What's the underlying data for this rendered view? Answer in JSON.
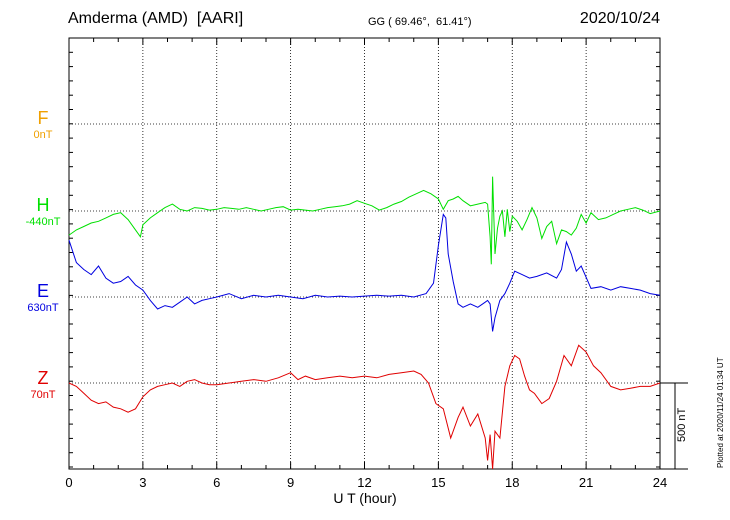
{
  "header": {
    "station": "Amderma (AMD)  [AARI]",
    "coords": "GG ( 69.46°,  61.41°)",
    "date": "2020/10/24"
  },
  "footer": {
    "plotted": "Plotted at 2020/11/24 01:34 UT"
  },
  "chart_data": {
    "type": "line",
    "xlabel": "U T (hour)",
    "xlim": [
      0,
      24
    ],
    "xticks": [
      0,
      3,
      6,
      9,
      12,
      15,
      18,
      21,
      24
    ],
    "grid": true,
    "scale_bar": {
      "label": "500 nT",
      "value": 500
    },
    "series": [
      {
        "name": "F",
        "baseline": "0nT",
        "color": "#f0a000",
        "x": [],
        "y": []
      },
      {
        "name": "H",
        "baseline": "-440nT",
        "color": "#00e000",
        "x": [
          0,
          0.3,
          0.6,
          0.9,
          1.2,
          1.5,
          1.8,
          2.1,
          2.4,
          2.7,
          2.9,
          3.0,
          3.3,
          3.6,
          3.9,
          4.2,
          4.5,
          4.8,
          5.1,
          5.4,
          5.7,
          6.0,
          6.3,
          6.6,
          6.9,
          7.2,
          7.5,
          7.8,
          8.1,
          8.4,
          8.7,
          9.0,
          9.3,
          9.6,
          9.9,
          10.2,
          10.5,
          10.8,
          11.1,
          11.4,
          11.7,
          12.0,
          12.3,
          12.6,
          12.9,
          13.2,
          13.5,
          13.8,
          14.1,
          14.4,
          14.7,
          15.0,
          15.2,
          15.4,
          15.6,
          15.8,
          16.0,
          16.3,
          16.6,
          16.9,
          17.0,
          17.1,
          17.15,
          17.2,
          17.3,
          17.4,
          17.5,
          17.6,
          17.7,
          17.8,
          17.9,
          18.0,
          18.2,
          18.4,
          18.6,
          18.8,
          19.0,
          19.2,
          19.4,
          19.6,
          19.8,
          20.0,
          20.2,
          20.4,
          20.6,
          20.8,
          21.0,
          21.2,
          21.5,
          21.8,
          22.1,
          22.4,
          22.7,
          23.0,
          23.3,
          23.6,
          24.0
        ],
        "y": [
          -140,
          -110,
          -90,
          -70,
          -60,
          -40,
          -20,
          -10,
          -50,
          -110,
          -150,
          -80,
          -40,
          -10,
          20,
          40,
          10,
          0,
          20,
          15,
          5,
          10,
          20,
          15,
          10,
          20,
          10,
          0,
          10,
          20,
          25,
          5,
          10,
          5,
          0,
          10,
          20,
          25,
          30,
          40,
          60,
          45,
          30,
          5,
          20,
          40,
          55,
          80,
          100,
          120,
          100,
          70,
          10,
          60,
          70,
          85,
          60,
          30,
          40,
          50,
          40,
          -150,
          -310,
          200,
          -250,
          -100,
          -30,
          0,
          -150,
          10,
          -120,
          -30,
          -60,
          -110,
          -50,
          20,
          -40,
          -160,
          -90,
          -60,
          -190,
          -110,
          -120,
          -140,
          -100,
          -20,
          -70,
          -10,
          -50,
          -40,
          -20,
          0,
          10,
          20,
          5,
          -15,
          0
        ]
      },
      {
        "name": "E",
        "baseline": "630nT",
        "color": "#0000e0",
        "x": [
          0,
          0.3,
          0.6,
          0.9,
          1.2,
          1.5,
          1.8,
          2.1,
          2.4,
          2.7,
          3.0,
          3.3,
          3.6,
          3.9,
          4.2,
          4.5,
          4.8,
          5.1,
          5.4,
          5.7,
          6.0,
          6.5,
          7.0,
          7.5,
          8.0,
          8.5,
          9.0,
          9.5,
          10.0,
          10.5,
          11.0,
          11.5,
          12.0,
          12.5,
          13.0,
          13.5,
          14.0,
          14.5,
          14.8,
          15.0,
          15.2,
          15.3,
          15.4,
          15.6,
          15.8,
          16.0,
          16.3,
          16.6,
          16.9,
          17.0,
          17.1,
          17.2,
          17.3,
          17.5,
          17.7,
          17.9,
          18.1,
          18.4,
          18.7,
          19.0,
          19.4,
          19.8,
          20.0,
          20.2,
          20.4,
          20.6,
          20.8,
          21.2,
          21.6,
          22.0,
          22.4,
          22.8,
          23.2,
          23.6,
          24.0
        ],
        "y": [
          330,
          200,
          160,
          130,
          180,
          110,
          80,
          90,
          120,
          70,
          40,
          -20,
          -70,
          -50,
          -60,
          -30,
          0,
          -40,
          -20,
          -10,
          0,
          20,
          -10,
          10,
          0,
          10,
          0,
          -10,
          10,
          0,
          5,
          0,
          5,
          10,
          5,
          10,
          0,
          20,
          80,
          300,
          480,
          460,
          250,
          90,
          -40,
          -60,
          -40,
          -60,
          -30,
          -20,
          -40,
          -200,
          -120,
          -20,
          20,
          80,
          150,
          130,
          110,
          120,
          140,
          110,
          160,
          320,
          250,
          150,
          180,
          50,
          60,
          40,
          60,
          50,
          40,
          20,
          10
        ]
      },
      {
        "name": "Z",
        "baseline": "70nT",
        "color": "#e00000",
        "x": [
          0,
          0.3,
          0.6,
          0.9,
          1.2,
          1.5,
          1.8,
          2.1,
          2.4,
          2.7,
          3.0,
          3.3,
          3.6,
          3.9,
          4.2,
          4.5,
          4.8,
          5.1,
          5.4,
          5.7,
          6.0,
          6.5,
          7.0,
          7.5,
          8.0,
          8.5,
          9.0,
          9.3,
          9.6,
          10.0,
          10.5,
          11.0,
          11.5,
          12.0,
          12.5,
          13.0,
          13.5,
          14.0,
          14.3,
          14.6,
          14.9,
          15.2,
          15.5,
          15.8,
          16.0,
          16.3,
          16.6,
          16.9,
          17.0,
          17.1,
          17.2,
          17.3,
          17.5,
          17.7,
          17.9,
          18.1,
          18.3,
          18.5,
          18.7,
          18.9,
          19.2,
          19.5,
          19.8,
          20.1,
          20.4,
          20.7,
          21.0,
          21.3,
          21.6,
          22.0,
          22.4,
          22.8,
          23.2,
          23.6,
          24.0
        ],
        "y": [
          0,
          -20,
          -60,
          -100,
          -120,
          -110,
          -140,
          -150,
          -170,
          -150,
          -80,
          -40,
          -20,
          -10,
          0,
          -20,
          10,
          20,
          0,
          -10,
          -10,
          0,
          10,
          20,
          10,
          30,
          60,
          20,
          40,
          20,
          30,
          40,
          30,
          40,
          30,
          50,
          60,
          70,
          50,
          0,
          -120,
          -150,
          -320,
          -200,
          -140,
          -250,
          -180,
          -320,
          -450,
          -300,
          -500,
          -280,
          -320,
          -20,
          100,
          160,
          140,
          40,
          -40,
          -60,
          -120,
          -90,
          10,
          160,
          100,
          220,
          180,
          100,
          60,
          -20,
          -40,
          -30,
          -20,
          -20,
          0
        ]
      }
    ]
  }
}
